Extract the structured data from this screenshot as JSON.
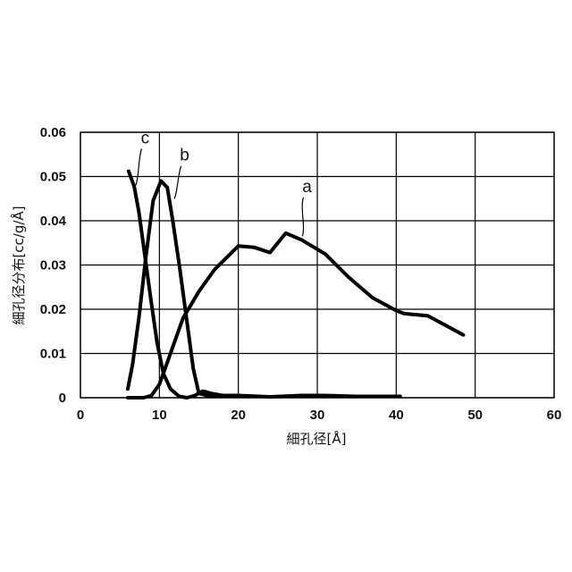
{
  "chart_data": {
    "type": "line",
    "xlabel": "細孔径[Å]",
    "ylabel": "細孔径分布[cc/g/Å]",
    "xlim": [
      0,
      60
    ],
    "ylim": [
      0,
      0.06
    ],
    "x_ticks": [
      0,
      10,
      20,
      30,
      40,
      50,
      60
    ],
    "x_tick_labels": [
      "0",
      "10",
      "20",
      "30",
      "40",
      "50",
      "60"
    ],
    "y_ticks": [
      0,
      0.01,
      0.02,
      0.03,
      0.04,
      0.05,
      0.06
    ],
    "y_tick_labels": [
      "0",
      "0.01",
      "0.02",
      "0.03",
      "0.04",
      "0.05",
      "0.06"
    ],
    "grid": true,
    "legend": "none",
    "line_color": "#000000",
    "series": [
      {
        "name": "a",
        "points": [
          [
            6,
            0
          ],
          [
            8,
            0
          ],
          [
            9,
            0.0005
          ],
          [
            10,
            0.003
          ],
          [
            11,
            0.008
          ],
          [
            12,
            0.013
          ],
          [
            13,
            0.018
          ],
          [
            15,
            0.024
          ],
          [
            17,
            0.029
          ],
          [
            20,
            0.0343
          ],
          [
            22,
            0.034
          ],
          [
            24,
            0.0328
          ],
          [
            26,
            0.0372
          ],
          [
            28,
            0.0357
          ],
          [
            31,
            0.0325
          ],
          [
            34,
            0.0272
          ],
          [
            37,
            0.0226
          ],
          [
            40,
            0.0197
          ],
          [
            41,
            0.019
          ],
          [
            44,
            0.0185
          ],
          [
            48.5,
            0.0142
          ]
        ]
      },
      {
        "name": "b",
        "points": [
          [
            6,
            0.002
          ],
          [
            6.6,
            0.0075
          ],
          [
            7.4,
            0.018
          ],
          [
            8.3,
            0.032
          ],
          [
            9.2,
            0.0445
          ],
          [
            10.2,
            0.049
          ],
          [
            11,
            0.0475
          ],
          [
            11.7,
            0.04
          ],
          [
            12.6,
            0.029
          ],
          [
            13.5,
            0.017
          ],
          [
            14.3,
            0.0065
          ],
          [
            15,
            0.001
          ],
          [
            16,
            0.0005
          ],
          [
            20,
            0.0005
          ],
          [
            24,
            0.0002
          ],
          [
            28,
            0.0005
          ],
          [
            31,
            0.0005
          ],
          [
            35,
            0.0003
          ],
          [
            40.5,
            0.0003
          ]
        ]
      },
      {
        "name": "c",
        "points": [
          [
            6.1,
            0.0512
          ],
          [
            6.8,
            0.0478
          ],
          [
            7.4,
            0.042
          ],
          [
            8.1,
            0.033
          ],
          [
            8.9,
            0.0225
          ],
          [
            9.7,
            0.0125
          ],
          [
            10.5,
            0.0055
          ],
          [
            11.4,
            0.002
          ],
          [
            12.5,
            0.0003
          ],
          [
            13.5,
            0
          ],
          [
            14.5,
            0.0005
          ],
          [
            15.5,
            0.0015
          ],
          [
            16.5,
            0.001
          ],
          [
            18,
            0.0005
          ],
          [
            20,
            0.0005
          ]
        ]
      }
    ],
    "annotations": [
      {
        "text": "a",
        "label_at": [
          28.7,
          0.0465
        ],
        "leader_to": [
          28.1,
          0.0365
        ]
      },
      {
        "text": "b",
        "label_at": [
          13.2,
          0.0536
        ],
        "leader_to": [
          11.9,
          0.045
        ]
      },
      {
        "text": "c",
        "label_at": [
          8.2,
          0.0575
        ],
        "leader_to": [
          7.0,
          0.048
        ]
      }
    ]
  }
}
